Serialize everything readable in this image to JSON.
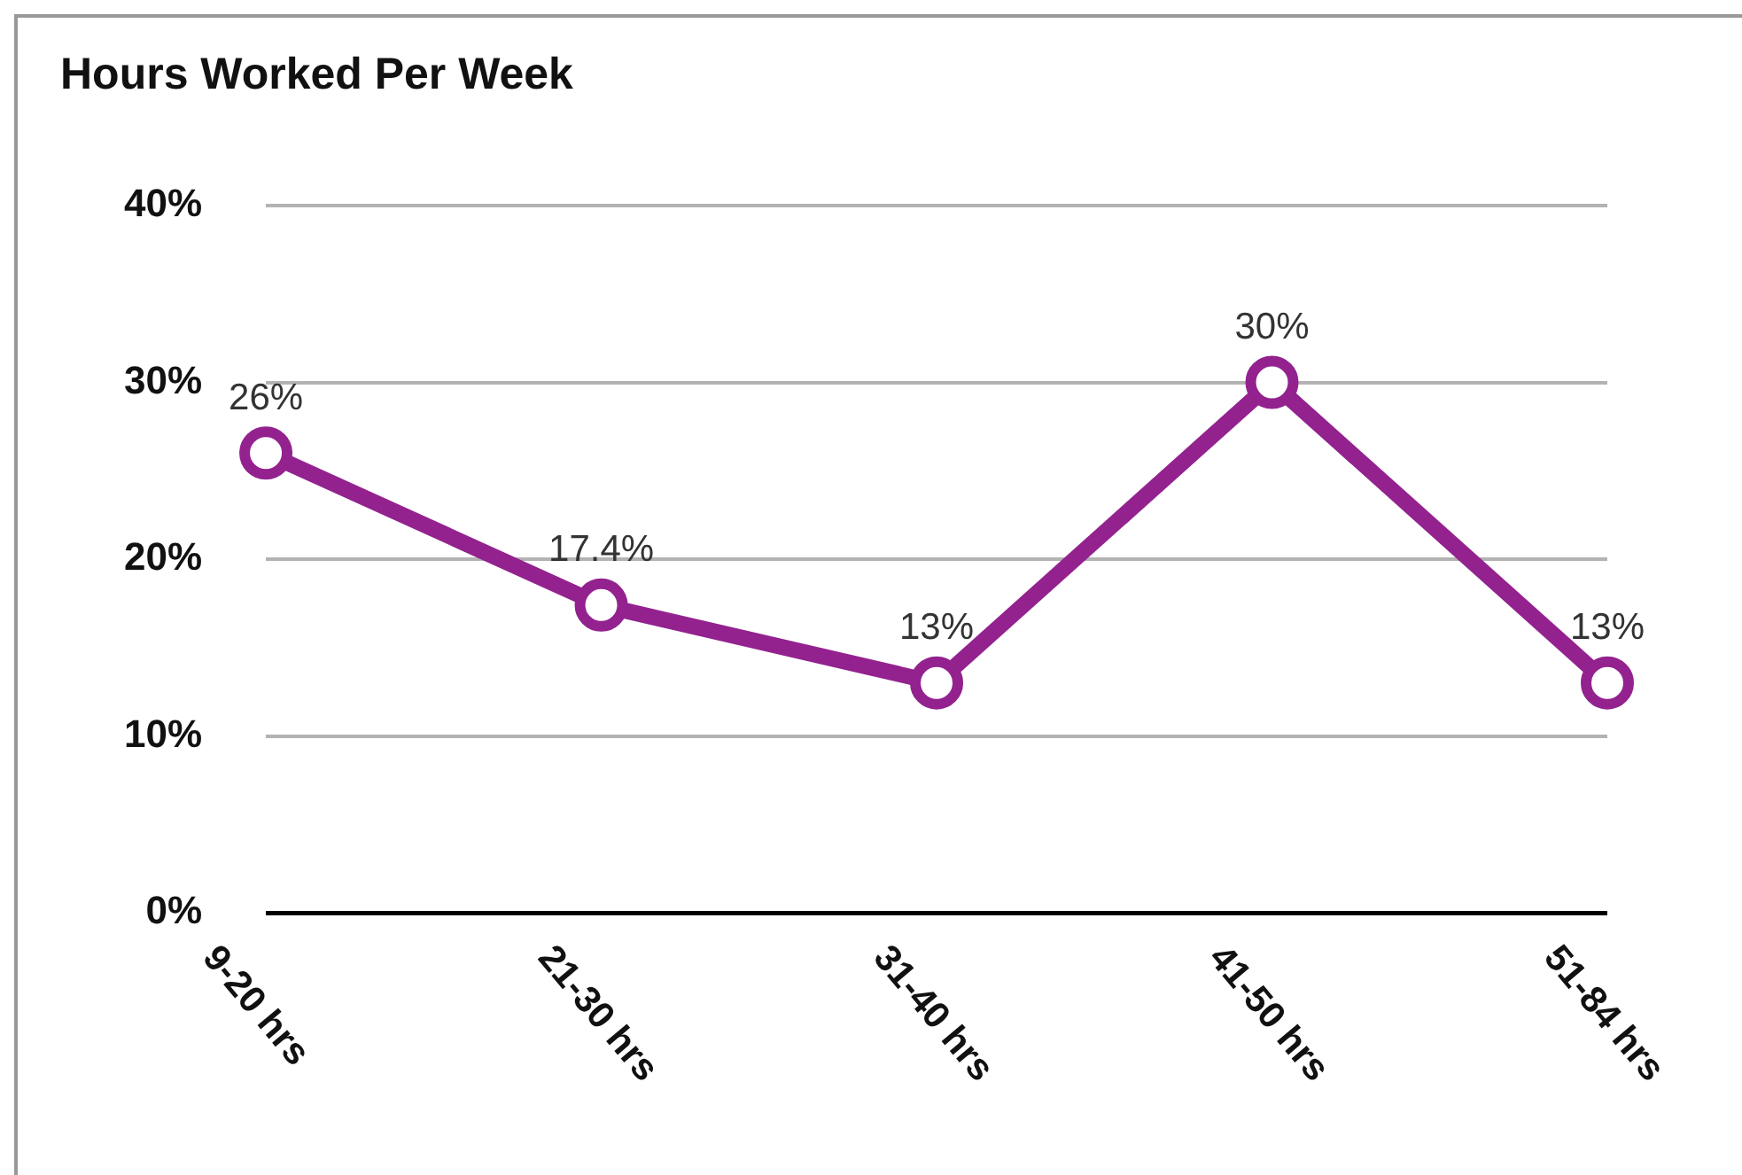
{
  "chart_data": {
    "type": "line",
    "title": "Hours Worked Per Week",
    "categories": [
      "9-20 hrs",
      "21-30 hrs",
      "31-40 hrs",
      "41-50 hrs",
      "51-84 hrs"
    ],
    "series": [
      {
        "color": "#93228f",
        "values": [
          26,
          17.4,
          13,
          30,
          13
        ],
        "value_labels": [
          "26%",
          "17.4%",
          "13%",
          "30%",
          "13%"
        ]
      }
    ],
    "ylim": [
      0,
      40
    ],
    "yticks": [
      {
        "value": 0,
        "label": "0%"
      },
      {
        "value": 10,
        "label": "10%"
      },
      {
        "value": 20,
        "label": "20%"
      },
      {
        "value": 30,
        "label": "30%"
      },
      {
        "value": 40,
        "label": "40%"
      }
    ],
    "grid": "y",
    "legend": false,
    "marker": "circle",
    "line_style": "solid"
  }
}
